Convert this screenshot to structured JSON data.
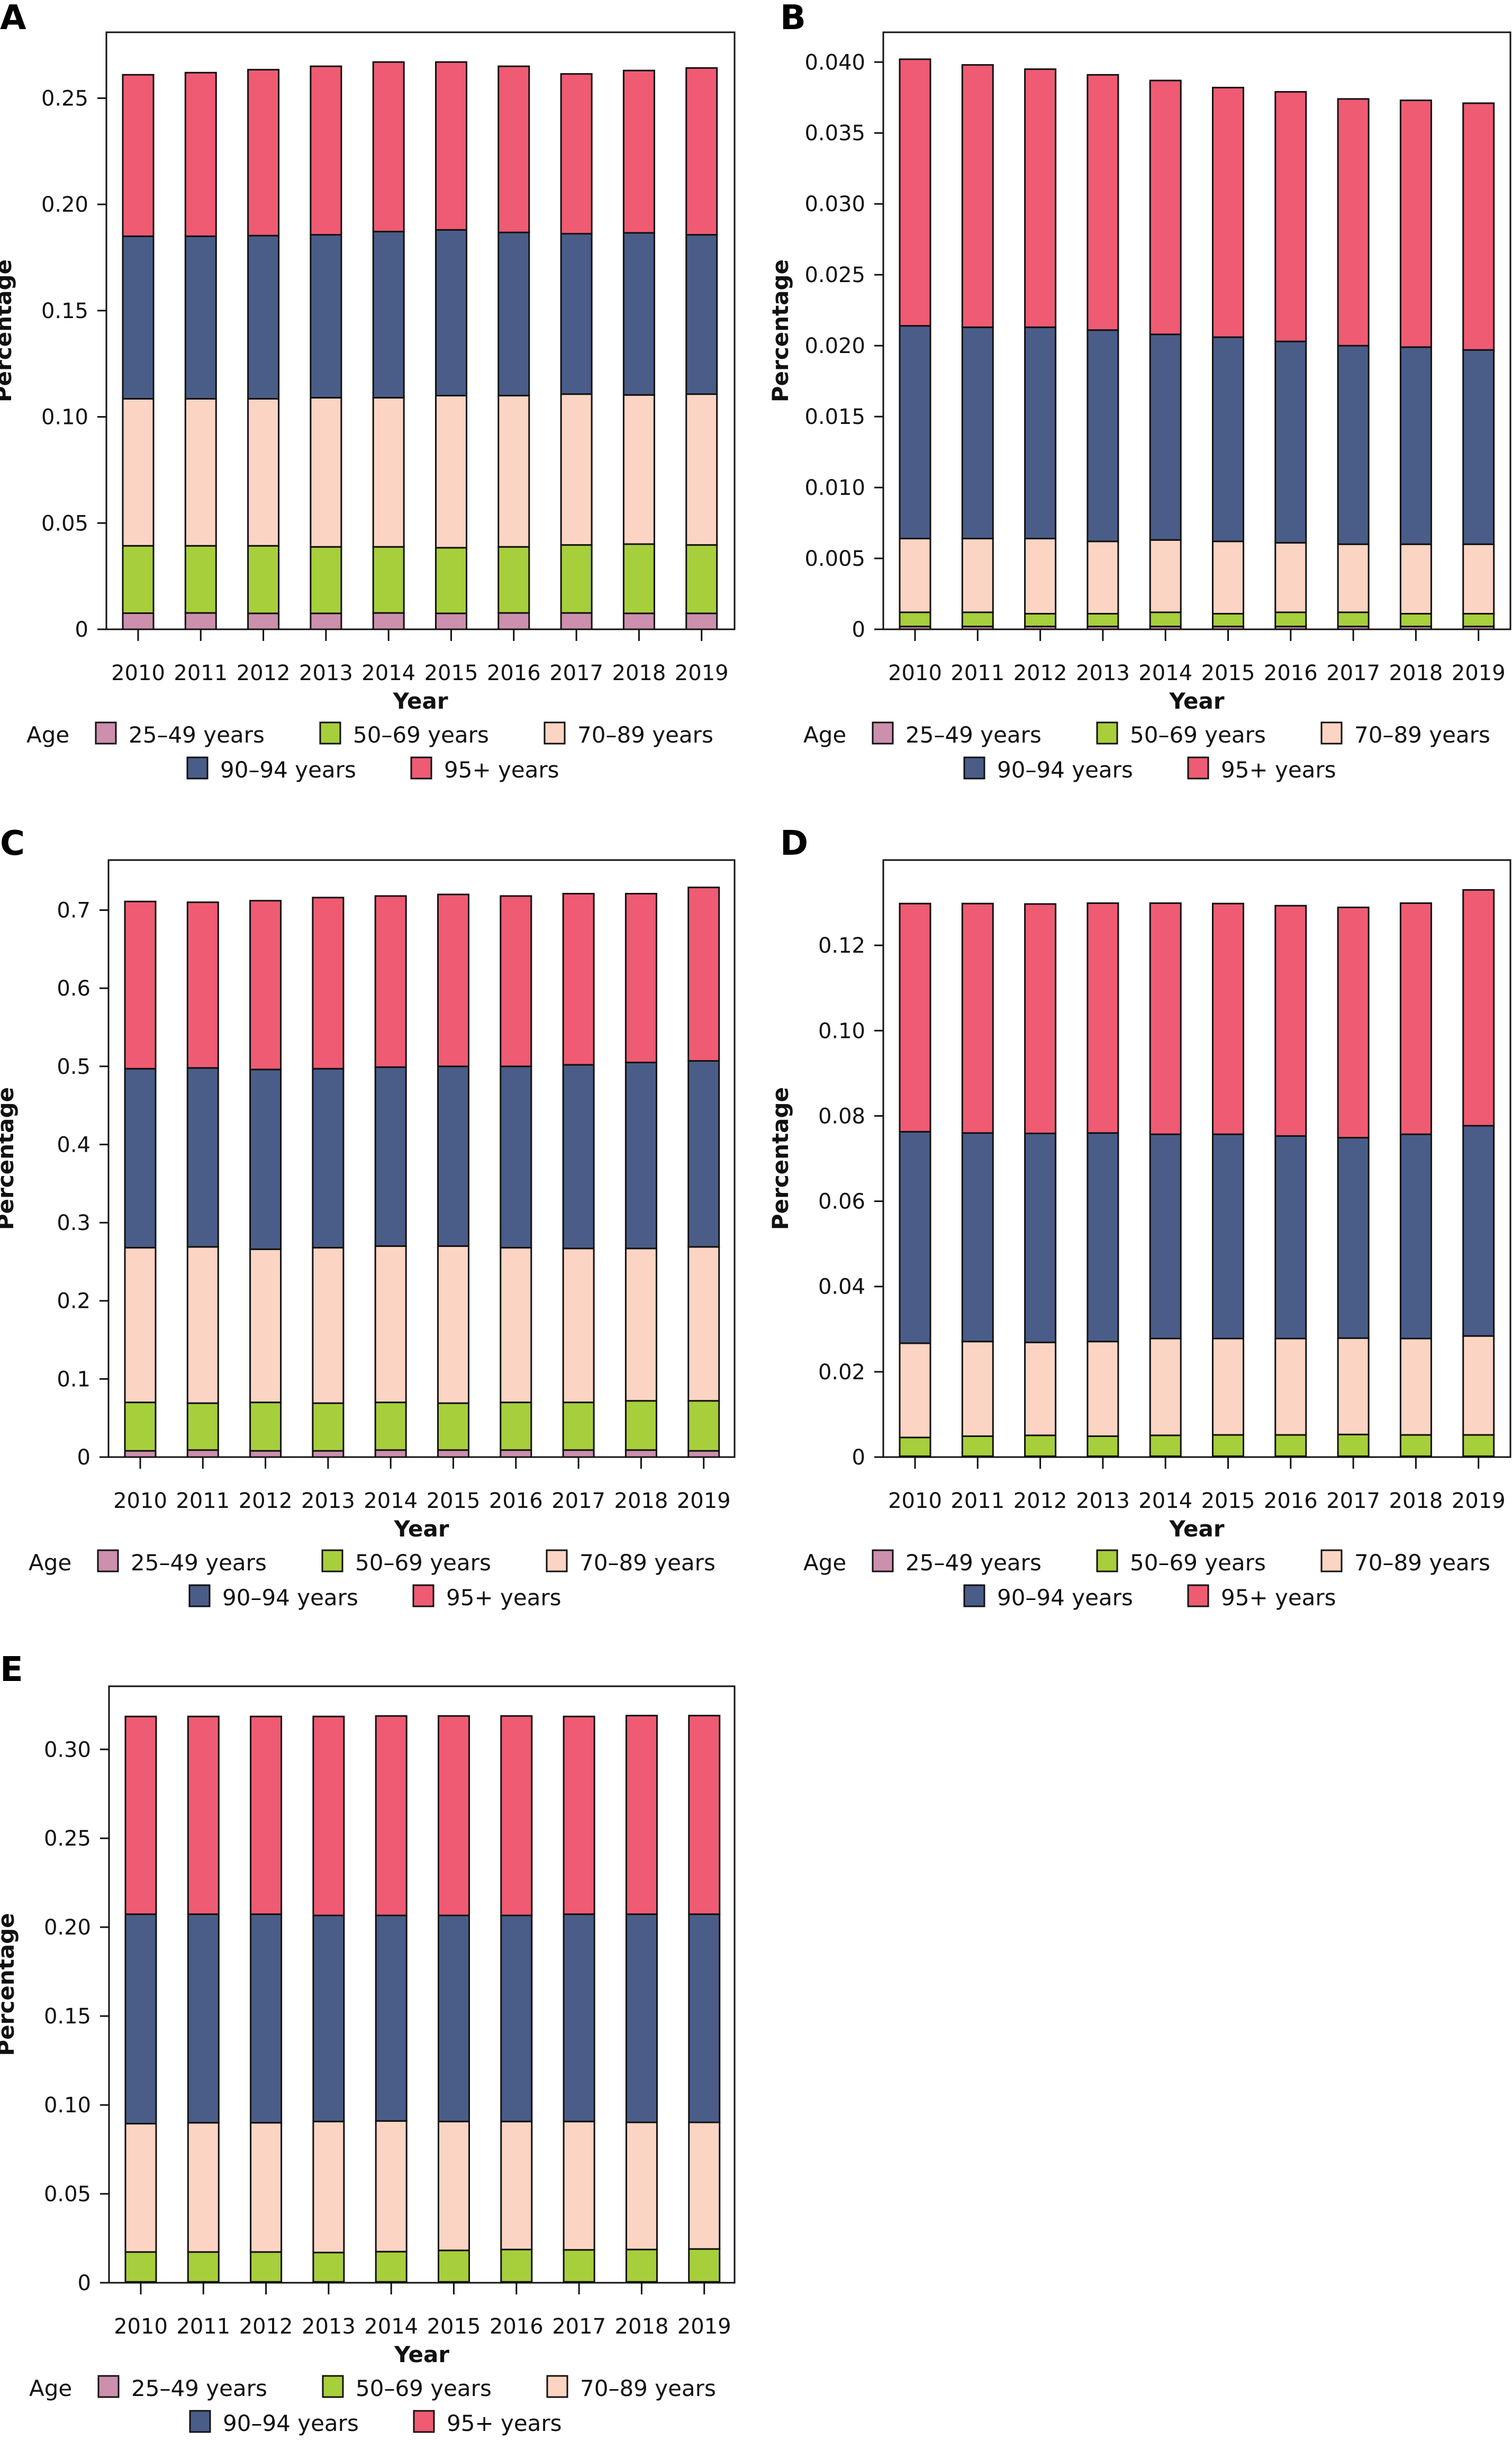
{
  "legend": {
    "title": "Age",
    "entries": [
      {
        "key": "25-49",
        "label": "25–49 years",
        "color": "#cc8fad"
      },
      {
        "key": "50-69",
        "label": "50–69 years",
        "color": "#a7cf3b"
      },
      {
        "key": "70-89",
        "label": "70–89 years",
        "color": "#fcd4c3"
      },
      {
        "key": "90-94",
        "label": "90–94 years",
        "color": "#4a5d88"
      },
      {
        "key": "95+",
        "label": "95+ years",
        "color": "#ef5b73"
      }
    ]
  },
  "chart_data": [
    {
      "panel": "A",
      "type": "bar",
      "stacked": true,
      "title": "",
      "xlabel": "Year",
      "ylabel": "Percentage",
      "ylim": [
        0,
        0.281
      ],
      "yticks": [
        0,
        0.05,
        0.1,
        0.15,
        0.2,
        0.25
      ],
      "ytick_labels": [
        "0",
        "0.05",
        "0.10",
        "0.15",
        "0.20",
        "0.25"
      ],
      "grid": false,
      "legend_position": "bottom",
      "categories": [
        "2010",
        "2011",
        "2012",
        "2013",
        "2014",
        "2015",
        "2016",
        "2017",
        "2018",
        "2019"
      ],
      "series": [
        {
          "name": "25–49 years",
          "values": [
            0.0076,
            0.0077,
            0.0075,
            0.0075,
            0.0077,
            0.0075,
            0.0077,
            0.0077,
            0.0075,
            0.0075
          ]
        },
        {
          "name": "50–69 years",
          "values": [
            0.0317,
            0.0316,
            0.0318,
            0.0313,
            0.0311,
            0.0309,
            0.0311,
            0.032,
            0.0326,
            0.0322
          ]
        },
        {
          "name": "70–89 years",
          "values": [
            0.0692,
            0.0692,
            0.0692,
            0.0702,
            0.0702,
            0.0716,
            0.0712,
            0.071,
            0.0702,
            0.071
          ]
        },
        {
          "name": "90–94 years",
          "values": [
            0.0765,
            0.0765,
            0.0768,
            0.0767,
            0.0782,
            0.078,
            0.0768,
            0.0755,
            0.0763,
            0.075
          ]
        },
        {
          "name": "95+ years",
          "values": [
            0.076,
            0.077,
            0.0781,
            0.0793,
            0.0798,
            0.079,
            0.0782,
            0.0752,
            0.0764,
            0.0785
          ]
        }
      ]
    },
    {
      "panel": "B",
      "type": "bar",
      "stacked": true,
      "title": "",
      "xlabel": "Year",
      "ylabel": "Percentage",
      "ylim": [
        0,
        0.0421
      ],
      "yticks": [
        0,
        0.005,
        0.01,
        0.015,
        0.02,
        0.025,
        0.03,
        0.035,
        0.04
      ],
      "ytick_labels": [
        "0",
        "0.005",
        "0.010",
        "0.015",
        "0.020",
        "0.025",
        "0.030",
        "0.035",
        "0.040"
      ],
      "grid": false,
      "legend_position": "bottom",
      "categories": [
        "2010",
        "2011",
        "2012",
        "2013",
        "2014",
        "2015",
        "2016",
        "2017",
        "2018",
        "2019"
      ],
      "series": [
        {
          "name": "25–49 years",
          "values": [
            0.0002,
            0.0002,
            0.0002,
            0.0002,
            0.0002,
            0.0002,
            0.0002,
            0.0002,
            0.0002,
            0.0002
          ]
        },
        {
          "name": "50–69 years",
          "values": [
            0.001,
            0.001,
            0.0009,
            0.0009,
            0.001,
            0.0009,
            0.001,
            0.001,
            0.0009,
            0.0009
          ]
        },
        {
          "name": "70–89 years",
          "values": [
            0.0052,
            0.0052,
            0.0053,
            0.0051,
            0.0051,
            0.0051,
            0.0049,
            0.0048,
            0.0049,
            0.0049
          ]
        },
        {
          "name": "90–94 years",
          "values": [
            0.015,
            0.0149,
            0.0149,
            0.0149,
            0.0145,
            0.0144,
            0.0142,
            0.014,
            0.0139,
            0.0137
          ]
        },
        {
          "name": "95+ years",
          "values": [
            0.0188,
            0.0185,
            0.0182,
            0.018,
            0.0179,
            0.0176,
            0.0176,
            0.0174,
            0.0174,
            0.0174
          ]
        }
      ]
    },
    {
      "panel": "C",
      "type": "bar",
      "stacked": true,
      "title": "",
      "xlabel": "Year",
      "ylabel": "Percentage",
      "ylim": [
        0,
        0.764
      ],
      "yticks": [
        0,
        0.1,
        0.2,
        0.3,
        0.4,
        0.5,
        0.6,
        0.7
      ],
      "ytick_labels": [
        "0",
        "0.1",
        "0.2",
        "0.3",
        "0.4",
        "0.5",
        "0.6",
        "0.7"
      ],
      "grid": false,
      "legend_position": "bottom",
      "categories": [
        "2010",
        "2011",
        "2012",
        "2013",
        "2014",
        "2015",
        "2016",
        "2017",
        "2018",
        "2019"
      ],
      "series": [
        {
          "name": "25–49 years",
          "values": [
            0.008,
            0.009,
            0.008,
            0.008,
            0.009,
            0.009,
            0.009,
            0.009,
            0.009,
            0.008
          ]
        },
        {
          "name": "50–69 years",
          "values": [
            0.062,
            0.06,
            0.062,
            0.061,
            0.061,
            0.06,
            0.061,
            0.061,
            0.063,
            0.064
          ]
        },
        {
          "name": "70–89 years",
          "values": [
            0.198,
            0.2,
            0.196,
            0.199,
            0.2,
            0.201,
            0.198,
            0.197,
            0.195,
            0.197
          ]
        },
        {
          "name": "90–94 years",
          "values": [
            0.229,
            0.229,
            0.23,
            0.229,
            0.229,
            0.23,
            0.232,
            0.235,
            0.238,
            0.238
          ]
        },
        {
          "name": "95+ years",
          "values": [
            0.214,
            0.212,
            0.216,
            0.219,
            0.219,
            0.22,
            0.218,
            0.219,
            0.216,
            0.222
          ]
        }
      ]
    },
    {
      "panel": "D",
      "type": "bar",
      "stacked": true,
      "title": "",
      "xlabel": "Year",
      "ylabel": "Percentage",
      "ylim": [
        0,
        0.14
      ],
      "yticks": [
        0,
        0.02,
        0.04,
        0.06,
        0.08,
        0.1,
        0.12
      ],
      "ytick_labels": [
        "0",
        "0.02",
        "0.04",
        "0.06",
        "0.08",
        "0.10",
        "0.12"
      ],
      "grid": false,
      "legend_position": "bottom",
      "categories": [
        "2010",
        "2011",
        "2012",
        "2013",
        "2014",
        "2015",
        "2016",
        "2017",
        "2018",
        "2019"
      ],
      "series": [
        {
          "name": "25–49 years",
          "values": [
            0.0002,
            0.0002,
            0.0002,
            0.0002,
            0.0002,
            0.0002,
            0.0002,
            0.0002,
            0.0002,
            0.0002
          ]
        },
        {
          "name": "50–69 years",
          "values": [
            0.0044,
            0.0047,
            0.0049,
            0.0047,
            0.0049,
            0.005,
            0.005,
            0.0051,
            0.005,
            0.005
          ]
        },
        {
          "name": "70–89 years",
          "values": [
            0.0221,
            0.0222,
            0.0218,
            0.0222,
            0.0227,
            0.0226,
            0.0226,
            0.0226,
            0.0226,
            0.0232
          ]
        },
        {
          "name": "90–94 years",
          "values": [
            0.0496,
            0.0489,
            0.049,
            0.0489,
            0.0479,
            0.0479,
            0.0475,
            0.047,
            0.0479,
            0.0493
          ]
        },
        {
          "name": "95+ years",
          "values": [
            0.0535,
            0.0538,
            0.0538,
            0.0539,
            0.0542,
            0.0541,
            0.054,
            0.054,
            0.0542,
            0.0553
          ]
        }
      ]
    },
    {
      "panel": "E",
      "type": "bar",
      "stacked": true,
      "title": "",
      "xlabel": "Year",
      "ylabel": "Percentage",
      "ylim": [
        0,
        0.3355
      ],
      "yticks": [
        0,
        0.05,
        0.1,
        0.15,
        0.2,
        0.25,
        0.3
      ],
      "ytick_labels": [
        "0",
        "0.05",
        "0.10",
        "0.15",
        "0.20",
        "0.25",
        "0.30"
      ],
      "grid": false,
      "legend_position": "bottom",
      "categories": [
        "2010",
        "2011",
        "2012",
        "2013",
        "2014",
        "2015",
        "2016",
        "2017",
        "2018",
        "2019"
      ],
      "series": [
        {
          "name": "25–49 years",
          "values": [
            0.0005,
            0.0005,
            0.0005,
            0.0005,
            0.0005,
            0.0005,
            0.0005,
            0.0005,
            0.0005,
            0.0005
          ]
        },
        {
          "name": "50–69 years",
          "values": [
            0.0168,
            0.0168,
            0.0168,
            0.0165,
            0.017,
            0.0177,
            0.0182,
            0.018,
            0.0182,
            0.0185
          ]
        },
        {
          "name": "70–89 years",
          "values": [
            0.0722,
            0.0727,
            0.0727,
            0.0737,
            0.0735,
            0.0725,
            0.072,
            0.0722,
            0.0715,
            0.0712
          ]
        },
        {
          "name": "90–94 years",
          "values": [
            0.1178,
            0.1173,
            0.1173,
            0.1159,
            0.1156,
            0.1159,
            0.1159,
            0.1166,
            0.1171,
            0.1171
          ]
        },
        {
          "name": "95+ years",
          "values": [
            0.1112,
            0.1112,
            0.1112,
            0.1119,
            0.1122,
            0.1122,
            0.1122,
            0.1112,
            0.1117,
            0.1117
          ]
        }
      ]
    }
  ]
}
